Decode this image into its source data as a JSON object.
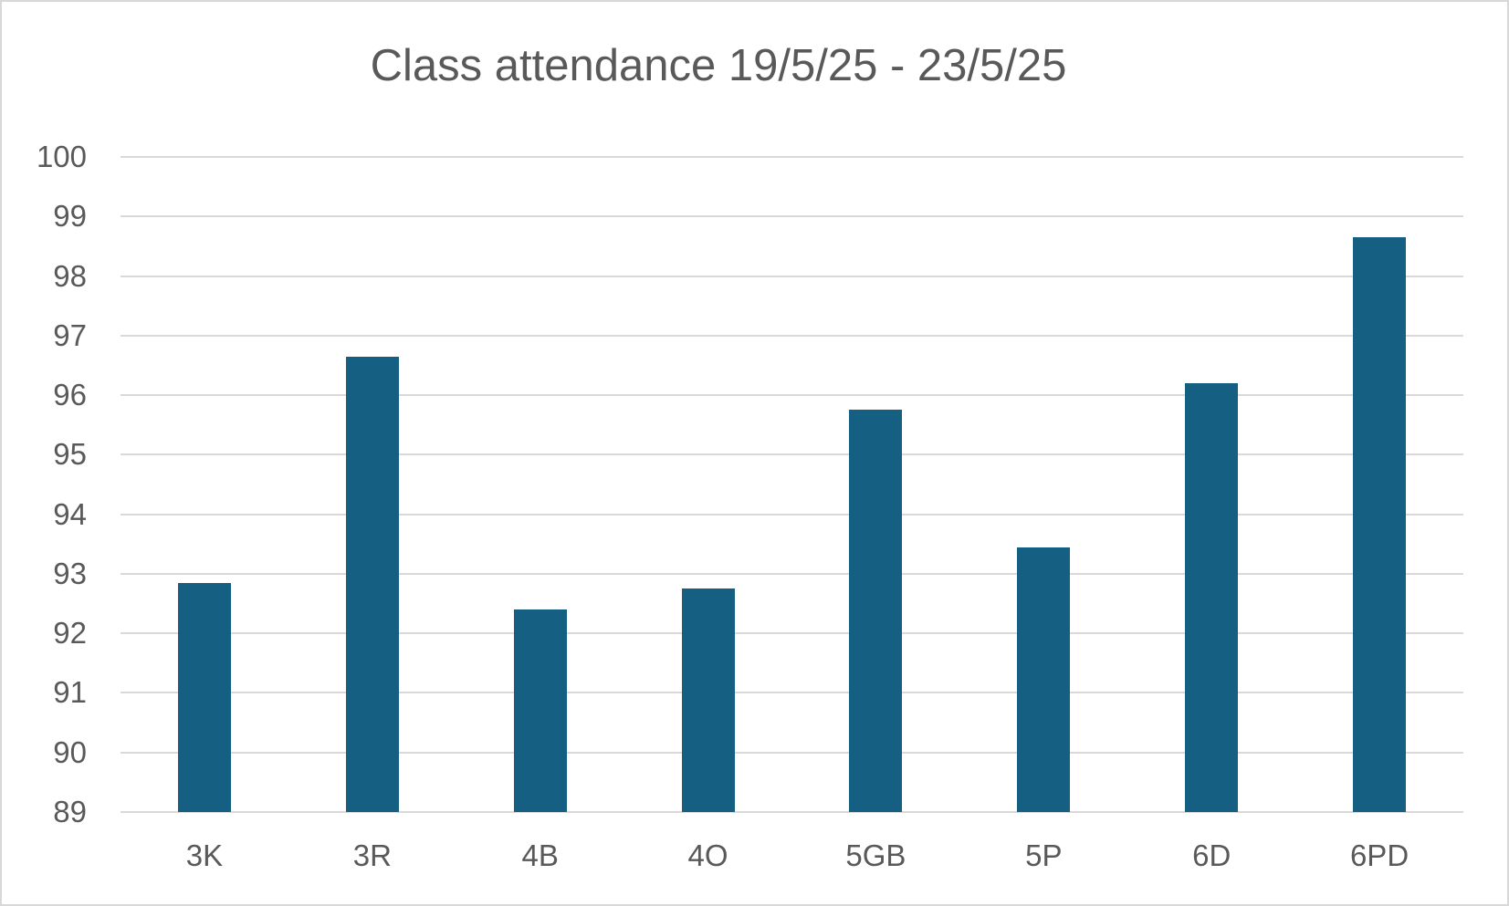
{
  "chart_data": {
    "type": "bar",
    "title": "Class attendance 19/5/25 - 23/5/25",
    "categories": [
      "3K",
      "3R",
      "4B",
      "4O",
      "5GB",
      "5P",
      "6D",
      "6PD"
    ],
    "values": [
      92.85,
      96.65,
      92.4,
      92.75,
      95.75,
      93.45,
      96.2,
      98.65
    ],
    "xlabel": "",
    "ylabel": "",
    "ylim": [
      89,
      100
    ],
    "yticks": [
      89,
      90,
      91,
      92,
      93,
      94,
      95,
      96,
      97,
      98,
      99,
      100
    ],
    "grid": "horizontal",
    "legend": "none",
    "colors": {
      "bar": "#156082",
      "text": "#595959",
      "gridline": "#d9d9d9",
      "background": "#ffffff",
      "border": "#d8d8d8"
    }
  }
}
